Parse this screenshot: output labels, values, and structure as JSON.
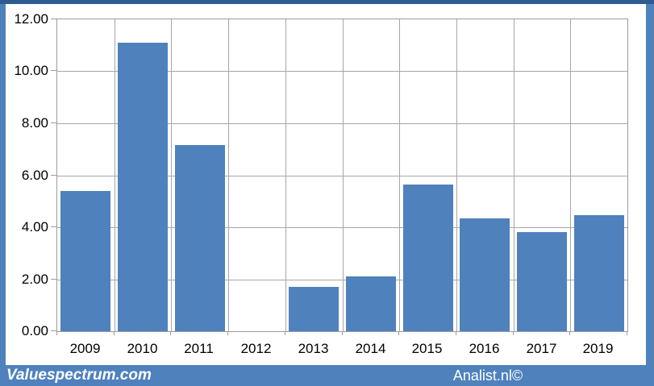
{
  "chart_data": {
    "type": "bar",
    "title": "",
    "xlabel": "",
    "ylabel": "",
    "categories": [
      "2009",
      "2010",
      "2011",
      "2012",
      "2013",
      "2014",
      "2015",
      "2016",
      "2017",
      "2019"
    ],
    "values": [
      5.4,
      11.1,
      7.15,
      0,
      1.7,
      2.1,
      5.65,
      4.35,
      3.8,
      4.45
    ],
    "ylim": [
      0,
      12
    ],
    "ytick_step": 2,
    "ytick_labels": [
      "0.00",
      "2.00",
      "4.00",
      "6.00",
      "8.00",
      "10.00",
      "12.00"
    ],
    "grid": true,
    "legend": "none",
    "bar_color": "#4f81bd",
    "gridline_color": "#a6a6a6"
  },
  "footer": {
    "left_text": "Valuespectrum.com",
    "right_text": "Analist.nl©",
    "background": "#4f81bd"
  },
  "frame": {
    "border_color": "#4f81bd",
    "edge_color": "#2e5b8f"
  }
}
